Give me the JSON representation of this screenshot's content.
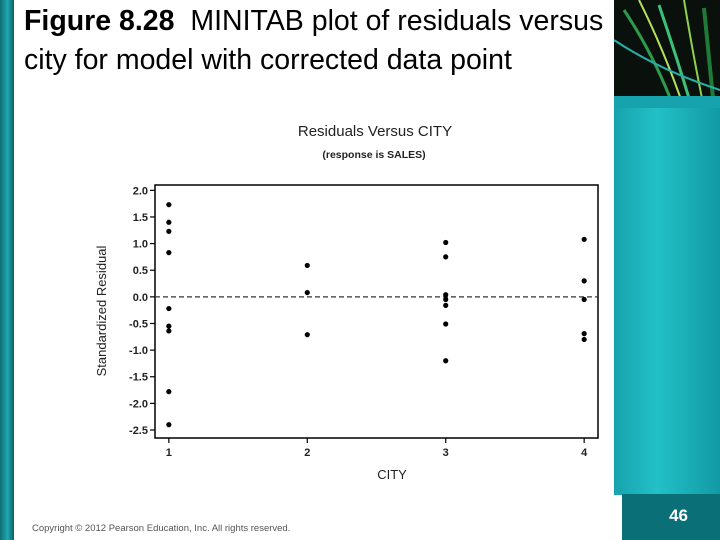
{
  "slide": {
    "title_figure": "Figure 8.28",
    "title_text": "MINITAB plot of residuals versus city for model with corrected data point",
    "copyright": "Copyright © 2012 Pearson Education, Inc. All rights reserved.",
    "page_number": "46",
    "colors": {
      "teal": "#1fa8b0",
      "dark_teal": "#0b6f77"
    }
  },
  "chart_data": {
    "type": "scatter",
    "title": "Residuals Versus CITY",
    "subtitle": "(response is SALES)",
    "xlabel": "CITY",
    "ylabel": "Standardized Residual",
    "x_ticks": [
      1,
      2,
      3,
      4
    ],
    "y_ticks": [
      "2.0",
      "1.5",
      "1.0",
      "0.5",
      "0.0",
      "-0.5",
      "-1.0",
      "-1.5",
      "-2.0",
      "-2.5"
    ],
    "xlim": [
      0.9,
      4.1
    ],
    "ylim": [
      -2.65,
      2.1
    ],
    "reference_line": 0.0,
    "points": [
      {
        "x": 1,
        "y": 1.73
      },
      {
        "x": 1,
        "y": 1.4
      },
      {
        "x": 1,
        "y": 1.23
      },
      {
        "x": 1,
        "y": 0.83
      },
      {
        "x": 1,
        "y": -0.22
      },
      {
        "x": 1,
        "y": -0.55
      },
      {
        "x": 1,
        "y": -0.64
      },
      {
        "x": 1,
        "y": -1.78
      },
      {
        "x": 1,
        "y": -2.4
      },
      {
        "x": 2,
        "y": 0.59
      },
      {
        "x": 2,
        "y": 0.08
      },
      {
        "x": 2,
        "y": -0.71
      },
      {
        "x": 3,
        "y": 1.02
      },
      {
        "x": 3,
        "y": 0.75
      },
      {
        "x": 3,
        "y": 0.04
      },
      {
        "x": 3,
        "y": -0.05
      },
      {
        "x": 3,
        "y": -0.16
      },
      {
        "x": 3,
        "y": -0.51
      },
      {
        "x": 3,
        "y": -1.2
      },
      {
        "x": 4,
        "y": 1.08
      },
      {
        "x": 4,
        "y": 0.3
      },
      {
        "x": 4,
        "y": -0.05
      },
      {
        "x": 4,
        "y": -0.69
      },
      {
        "x": 4,
        "y": -0.8
      }
    ]
  }
}
